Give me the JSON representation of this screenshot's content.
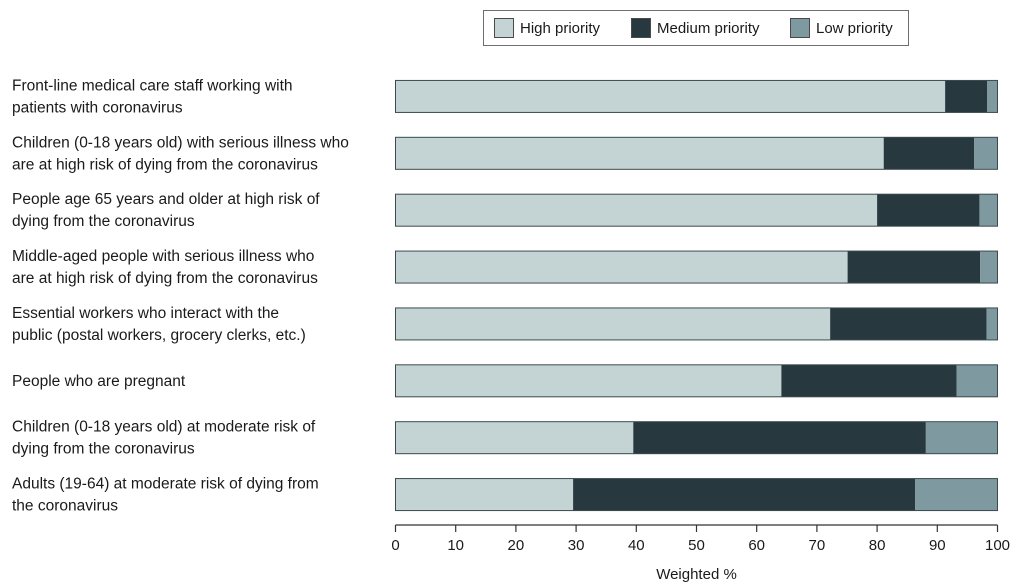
{
  "chart_data": {
    "type": "bar",
    "orientation": "horizontal",
    "stacked": true,
    "categories": [
      [
        "Front-line medical care staff working with",
        "patients with coronavirus"
      ],
      [
        "Children (0-18 years old) with serious illness who",
        "are at high risk of dying from the coronavirus"
      ],
      [
        "People age 65 years and older at high risk of",
        "dying from the coronavirus"
      ],
      [
        "Middle-aged people with serious illness who",
        "are at high risk of dying from the coronavirus"
      ],
      [
        "Essential workers who interact with the",
        "public (postal workers, grocery clerks, etc.)"
      ],
      [
        "People who are pregnant"
      ],
      [
        "Children (0-18 years old) at moderate risk of",
        "dying from the coronavirus"
      ],
      [
        "Adults (19-64) at moderate risk of dying from",
        "the coronavirus"
      ]
    ],
    "series": [
      {
        "name": "High priority",
        "color": "#c4d3d3",
        "values": [
          91.3,
          81.1,
          80.0,
          75.1,
          72.2,
          64.1,
          39.5,
          29.5
        ]
      },
      {
        "name": "Medium priority",
        "color": "#27393e",
        "values": [
          7.0,
          15.0,
          17.0,
          22.0,
          26.0,
          29.1,
          48.6,
          56.8
        ]
      },
      {
        "name": "Low priority",
        "color": "#7e9aa0",
        "values": [
          1.7,
          3.9,
          3.0,
          2.9,
          1.8,
          6.8,
          11.9,
          13.7
        ]
      }
    ],
    "xlabel": "Weighted %",
    "xlim": [
      0,
      100
    ],
    "xticks": [
      "0",
      "10",
      "20",
      "30",
      "40",
      "50",
      "60",
      "70",
      "80",
      "90",
      "100"
    ],
    "grid": false,
    "legend_position": "top-right"
  }
}
